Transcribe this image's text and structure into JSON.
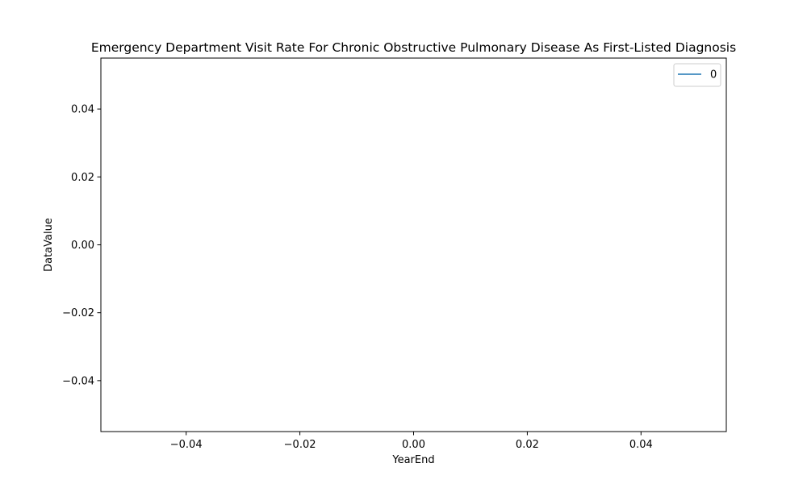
{
  "chart_data": {
    "type": "line",
    "title": "Emergency Department Visit Rate For Chronic Obstructive Pulmonary Disease As First-Listed Diagnosis",
    "xlabel": "YearEnd",
    "ylabel": "DataValue",
    "xlim": [
      -0.055,
      0.055
    ],
    "ylim": [
      -0.055,
      0.055
    ],
    "x_ticks": [
      -0.04,
      -0.02,
      0.0,
      0.02,
      0.04
    ],
    "x_tick_labels": [
      "−0.04",
      "−0.02",
      "0.00",
      "0.02",
      "0.04"
    ],
    "y_ticks": [
      -0.04,
      -0.02,
      0.0,
      0.02,
      0.04
    ],
    "y_tick_labels": [
      "−0.04",
      "−0.02",
      "0.00",
      "0.02",
      "0.04"
    ],
    "grid": false,
    "legend_position": "top-right",
    "series": [
      {
        "name": "0",
        "color": "#1f77b4",
        "x": [],
        "y": []
      }
    ]
  }
}
